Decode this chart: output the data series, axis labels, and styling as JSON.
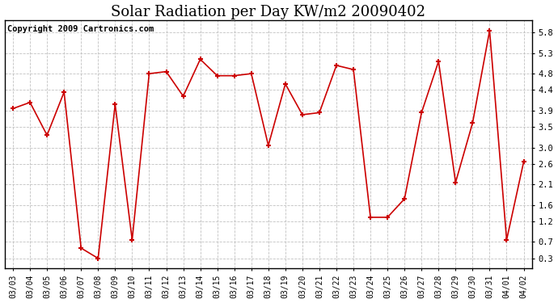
{
  "title": "Solar Radiation per Day KW/m2 20090402",
  "copyright": "Copyright 2009 Cartronics.com",
  "dates": [
    "03/03",
    "03/04",
    "03/05",
    "03/06",
    "03/07",
    "03/08",
    "03/09",
    "03/10",
    "03/11",
    "03/12",
    "03/13",
    "03/14",
    "03/15",
    "03/16",
    "03/17",
    "03/18",
    "03/19",
    "03/20",
    "03/21",
    "03/22",
    "03/23",
    "03/24",
    "03/25",
    "03/26",
    "03/27",
    "03/28",
    "03/29",
    "03/30",
    "03/31",
    "04/01",
    "04/02"
  ],
  "values": [
    3.95,
    4.1,
    3.3,
    4.35,
    0.55,
    0.3,
    4.05,
    0.75,
    4.8,
    4.85,
    4.25,
    5.15,
    4.75,
    4.75,
    4.8,
    3.05,
    4.55,
    3.8,
    3.85,
    5.0,
    4.9,
    1.3,
    1.3,
    1.75,
    3.85,
    5.1,
    2.15,
    3.6,
    5.85,
    0.75,
    2.65
  ],
  "line_color": "#cc0000",
  "marker": "+",
  "marker_size": 5,
  "marker_color": "#cc0000",
  "bg_color": "#ffffff",
  "plot_bg_color": "#ffffff",
  "grid_color": "#bbbbbb",
  "yticks": [
    0.3,
    0.7,
    1.2,
    1.6,
    2.1,
    2.6,
    3.0,
    3.5,
    3.9,
    4.4,
    4.8,
    5.3,
    5.8
  ],
  "ymin": 0.05,
  "ymax": 6.1,
  "title_fontsize": 13,
  "copyright_fontsize": 7.5,
  "tick_fontsize": 7,
  "ytick_fontsize": 7.5
}
